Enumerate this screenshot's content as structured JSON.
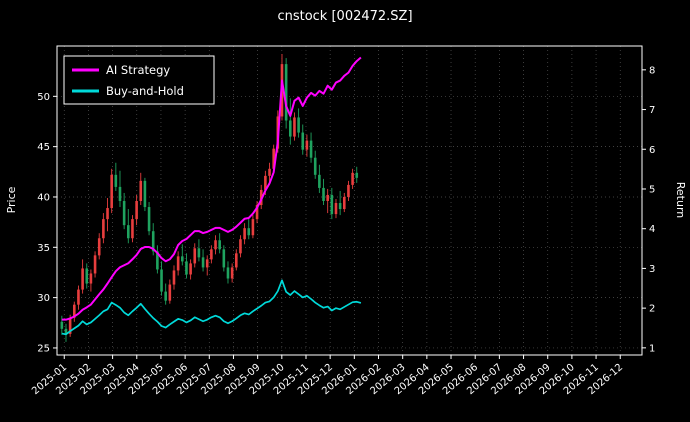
{
  "chart_data": {
    "type": "candlestick",
    "title": "cnstock [002472.SZ]",
    "left_axis": {
      "label": "Price",
      "min": 24.3,
      "max": 55.0,
      "ticks": [
        25,
        30,
        35,
        40,
        45,
        50
      ]
    },
    "right_axis": {
      "label": "Return",
      "min": 0.82,
      "max": 8.6,
      "ticks": [
        1,
        2,
        3,
        4,
        5,
        6,
        7,
        8
      ]
    },
    "x_axis": {
      "min": -0.3,
      "max": 23.9,
      "tick_labels": [
        "2025-01",
        "2025-02",
        "2025-03",
        "2025-04",
        "2025-05",
        "2025-06",
        "2025-07",
        "2025-08",
        "2025-09",
        "2025-10",
        "2025-11",
        "2025-12",
        "2026-01",
        "2026-02",
        "2026-03",
        "2026-04",
        "2026-05",
        "2026-06",
        "2026-07",
        "2026-08",
        "2026-09",
        "2026-10",
        "2026-11",
        "2026-12"
      ]
    },
    "grid": true,
    "legend_position": "upper-left",
    "colors": {
      "up": "#e83e3e",
      "down": "#1fa35f",
      "ai_line": "#ff00ff",
      "bh_line": "#00dada",
      "grid": "#555555",
      "axis": "#ffffff",
      "text": "#ffffff",
      "bg": "#000000"
    },
    "legend": [
      {
        "label": "AI Strategy",
        "color_key": "ai_line"
      },
      {
        "label": "Buy-and-Hold",
        "color_key": "bh_line"
      }
    ],
    "candle_month_start": -0.1,
    "candle_month_end": 12.1,
    "candles_ohlc": [
      [
        27.6,
        28.2,
        26.3,
        26.9
      ],
      [
        26.9,
        27.4,
        25.6,
        26.4
      ],
      [
        26.4,
        28.3,
        26.1,
        28.0
      ],
      [
        28.0,
        29.6,
        27.6,
        29.3
      ],
      [
        29.3,
        31.2,
        28.8,
        30.8
      ],
      [
        30.8,
        33.8,
        30.4,
        32.9
      ],
      [
        32.9,
        33.4,
        30.9,
        31.4
      ],
      [
        31.4,
        32.8,
        30.6,
        32.4
      ],
      [
        32.4,
        34.6,
        32.0,
        34.2
      ],
      [
        34.2,
        36.4,
        33.8,
        35.9
      ],
      [
        35.9,
        38.4,
        35.4,
        37.8
      ],
      [
        37.8,
        39.9,
        36.6,
        38.9
      ],
      [
        38.9,
        42.8,
        38.4,
        42.2
      ],
      [
        42.2,
        43.4,
        40.6,
        41.0
      ],
      [
        41.0,
        42.6,
        39.0,
        39.6
      ],
      [
        39.6,
        40.4,
        36.8,
        37.2
      ],
      [
        37.2,
        38.8,
        35.4,
        35.9
      ],
      [
        35.9,
        38.2,
        35.5,
        37.8
      ],
      [
        37.8,
        40.2,
        37.2,
        39.6
      ],
      [
        39.6,
        42.4,
        39.2,
        41.6
      ],
      [
        41.6,
        41.9,
        38.6,
        39.0
      ],
      [
        39.0,
        39.5,
        36.2,
        36.6
      ],
      [
        36.6,
        37.4,
        34.2,
        34.6
      ],
      [
        34.6,
        35.2,
        32.4,
        32.8
      ],
      [
        32.8,
        33.6,
        30.2,
        30.6
      ],
      [
        30.6,
        31.4,
        29.3,
        29.7
      ],
      [
        29.7,
        31.8,
        29.4,
        31.3
      ],
      [
        31.3,
        33.2,
        30.8,
        32.7
      ],
      [
        32.7,
        34.6,
        32.2,
        34.1
      ],
      [
        34.1,
        35.3,
        33.2,
        33.6
      ],
      [
        33.6,
        34.4,
        31.9,
        32.3
      ],
      [
        32.3,
        33.8,
        31.8,
        33.4
      ],
      [
        33.4,
        35.4,
        33.0,
        34.9
      ],
      [
        34.9,
        35.8,
        33.6,
        34.0
      ],
      [
        34.0,
        34.8,
        32.6,
        33.0
      ],
      [
        33.0,
        34.2,
        32.2,
        33.8
      ],
      [
        33.8,
        35.2,
        33.4,
        34.8
      ],
      [
        34.8,
        36.2,
        34.3,
        35.7
      ],
      [
        35.7,
        36.4,
        34.4,
        34.8
      ],
      [
        34.8,
        35.2,
        32.6,
        33.0
      ],
      [
        33.0,
        33.6,
        31.4,
        31.9
      ],
      [
        31.9,
        33.4,
        31.5,
        33.0
      ],
      [
        33.0,
        34.8,
        32.7,
        34.4
      ],
      [
        34.4,
        36.2,
        34.0,
        35.8
      ],
      [
        35.8,
        37.4,
        35.3,
        36.9
      ],
      [
        36.9,
        37.8,
        35.8,
        36.2
      ],
      [
        36.2,
        38.2,
        35.9,
        37.8
      ],
      [
        37.8,
        39.6,
        37.4,
        39.2
      ],
      [
        39.2,
        41.2,
        38.8,
        40.7
      ],
      [
        40.7,
        42.6,
        40.2,
        42.1
      ],
      [
        42.1,
        43.4,
        41.2,
        42.8
      ],
      [
        42.8,
        45.2,
        42.4,
        44.8
      ],
      [
        44.8,
        48.6,
        44.4,
        48.0
      ],
      [
        48.0,
        54.2,
        47.6,
        53.2
      ],
      [
        53.2,
        53.8,
        46.8,
        47.6
      ],
      [
        47.6,
        49.8,
        45.2,
        46.0
      ],
      [
        46.0,
        48.4,
        45.6,
        47.9
      ],
      [
        47.9,
        48.8,
        45.9,
        46.4
      ],
      [
        46.4,
        47.2,
        44.2,
        44.7
      ],
      [
        44.7,
        46.2,
        44.0,
        45.6
      ],
      [
        45.6,
        46.4,
        43.4,
        43.9
      ],
      [
        43.9,
        44.6,
        41.8,
        42.2
      ],
      [
        42.2,
        43.2,
        40.4,
        40.9
      ],
      [
        40.9,
        41.8,
        39.2,
        39.6
      ],
      [
        39.6,
        40.8,
        38.4,
        40.2
      ],
      [
        40.2,
        40.9,
        37.8,
        38.3
      ],
      [
        38.3,
        39.8,
        37.9,
        39.4
      ],
      [
        39.4,
        40.6,
        38.2,
        38.8
      ],
      [
        38.8,
        40.4,
        38.5,
        40.0
      ],
      [
        40.0,
        41.6,
        39.6,
        41.2
      ],
      [
        41.2,
        42.8,
        40.8,
        42.4
      ],
      [
        42.4,
        43.0,
        41.4,
        41.9
      ]
    ],
    "series": [
      {
        "name": "Buy-and-Hold",
        "axis": "right",
        "color_key": "bh_line",
        "values": [
          1.36,
          1.34,
          1.42,
          1.49,
          1.56,
          1.67,
          1.59,
          1.64,
          1.73,
          1.82,
          1.92,
          1.97,
          2.14,
          2.08,
          2.01,
          1.89,
          1.82,
          1.92,
          2.01,
          2.11,
          1.98,
          1.86,
          1.75,
          1.66,
          1.55,
          1.51,
          1.59,
          1.66,
          1.73,
          1.7,
          1.64,
          1.69,
          1.77,
          1.72,
          1.67,
          1.71,
          1.77,
          1.81,
          1.77,
          1.67,
          1.62,
          1.67,
          1.74,
          1.82,
          1.87,
          1.84,
          1.92,
          1.99,
          2.06,
          2.14,
          2.17,
          2.27,
          2.43,
          2.7,
          2.41,
          2.33,
          2.43,
          2.35,
          2.27,
          2.31,
          2.23,
          2.14,
          2.07,
          2.01,
          2.04,
          1.94,
          2.0,
          1.97,
          2.03,
          2.09,
          2.15,
          2.16,
          2.13
        ]
      },
      {
        "name": "AI Strategy",
        "axis": "right",
        "color_key": "ai_line",
        "values": [
          1.71,
          1.71,
          1.74,
          1.79,
          1.86,
          1.96,
          2.02,
          2.09,
          2.22,
          2.35,
          2.47,
          2.62,
          2.78,
          2.93,
          3.03,
          3.08,
          3.13,
          3.23,
          3.34,
          3.49,
          3.54,
          3.54,
          3.49,
          3.39,
          3.26,
          3.18,
          3.23,
          3.36,
          3.59,
          3.69,
          3.74,
          3.84,
          3.94,
          3.94,
          3.89,
          3.92,
          3.97,
          4.02,
          4.02,
          3.97,
          3.92,
          3.97,
          4.05,
          4.15,
          4.25,
          4.27,
          4.38,
          4.53,
          4.73,
          4.96,
          5.14,
          5.42,
          6.2,
          7.73,
          7.09,
          6.84,
          7.22,
          7.3,
          7.09,
          7.3,
          7.42,
          7.35,
          7.47,
          7.4,
          7.6,
          7.5,
          7.68,
          7.73,
          7.85,
          7.93,
          8.1,
          8.22,
          8.31
        ]
      }
    ]
  }
}
